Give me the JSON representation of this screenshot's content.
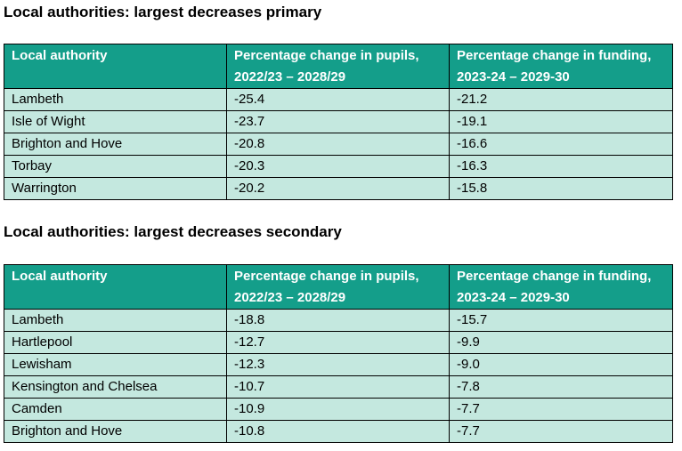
{
  "primary": {
    "title": "Local authorities: largest decreases primary",
    "headers": [
      "Local authority",
      "Percentage change in pupils, 2022/23 – 2028/29",
      "Percentage change in funding, 2023-24 – 2029-30"
    ],
    "rows": [
      {
        "authority": "Lambeth",
        "pupils": "-25.4",
        "funding": "-21.2"
      },
      {
        "authority": "Isle of Wight",
        "pupils": "-23.7",
        "funding": "-19.1"
      },
      {
        "authority": "Brighton and Hove",
        "pupils": "-20.8",
        "funding": "-16.6"
      },
      {
        "authority": "Torbay",
        "pupils": "-20.3",
        "funding": "-16.3"
      },
      {
        "authority": "Warrington",
        "pupils": "-20.2",
        "funding": "-15.8"
      }
    ]
  },
  "secondary": {
    "title": "Local authorities: largest decreases secondary",
    "headers": [
      "Local authority",
      "Percentage change in pupils, 2022/23 – 2028/29",
      "Percentage change in funding, 2023-24 – 2029-30"
    ],
    "rows": [
      {
        "authority": "Lambeth",
        "pupils": "-18.8",
        "funding": "-15.7"
      },
      {
        "authority": "Hartlepool",
        "pupils": "-12.7",
        "funding": "-9.9"
      },
      {
        "authority": "Lewisham",
        "pupils": "-12.3",
        "funding": "-9.0"
      },
      {
        "authority": "Kensington and Chelsea",
        "pupils": "-10.7",
        "funding": "-7.8"
      },
      {
        "authority": "Camden",
        "pupils": "-10.9",
        "funding": "-7.7"
      },
      {
        "authority": "Brighton and Hove",
        "pupils": "-10.8",
        "funding": "-7.7"
      }
    ]
  }
}
